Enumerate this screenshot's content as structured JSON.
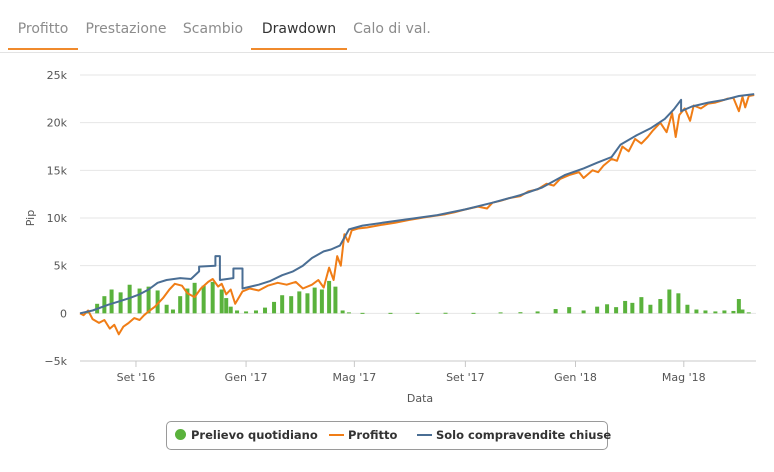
{
  "tabs": [
    {
      "label": "Profitto"
    },
    {
      "label": "Prestazione"
    },
    {
      "label": "Scambio"
    },
    {
      "label": "Drawdown",
      "active": true
    },
    {
      "label": "Calo di val."
    }
  ],
  "colors": {
    "accent": "#f08a2c",
    "daily": "#5ab23c",
    "profit": "#f07d16",
    "closed": "#4a6e94"
  },
  "chart_data": {
    "type": "line",
    "xlabel": "Data",
    "ylabel": "Pip",
    "x_range": [
      "2016-07-01",
      "2018-07-20"
    ],
    "ylim": [
      -5000,
      25000
    ],
    "yticks": [
      {
        "value": 25000,
        "label": "25k"
      },
      {
        "value": 20000,
        "label": "20k"
      },
      {
        "value": 15000,
        "label": "15k"
      },
      {
        "value": 10000,
        "label": "10k"
      },
      {
        "value": 5000,
        "label": "5k"
      },
      {
        "value": 0,
        "label": "0"
      },
      {
        "value": -5000,
        "label": "−5k"
      }
    ],
    "xticks": [
      {
        "date": "2016-09-01",
        "label": "Set '16"
      },
      {
        "date": "2017-01-01",
        "label": "Gen '17"
      },
      {
        "date": "2017-05-01",
        "label": "Mag '17"
      },
      {
        "date": "2017-09-01",
        "label": "Set '17"
      },
      {
        "date": "2018-01-01",
        "label": "Gen '18"
      },
      {
        "date": "2018-05-01",
        "label": "Mag '18"
      }
    ],
    "grid": true,
    "legend_position": "bottom",
    "series": [
      {
        "name": "Prelievo quotidiano",
        "kind": "column",
        "color": "#5ab23c",
        "points": [
          [
            "2016-07-10",
            200
          ],
          [
            "2016-07-20",
            1000
          ],
          [
            "2016-07-28",
            1800
          ],
          [
            "2016-08-05",
            2500
          ],
          [
            "2016-08-15",
            2200
          ],
          [
            "2016-08-25",
            3000
          ],
          [
            "2016-09-05",
            2600
          ],
          [
            "2016-09-15",
            2800
          ],
          [
            "2016-09-25",
            2400
          ],
          [
            "2016-10-05",
            900
          ],
          [
            "2016-10-12",
            400
          ],
          [
            "2016-10-20",
            1800
          ],
          [
            "2016-10-28",
            2600
          ],
          [
            "2016-11-05",
            3200
          ],
          [
            "2016-11-15",
            2900
          ],
          [
            "2016-11-25",
            3300
          ],
          [
            "2016-12-05",
            2500
          ],
          [
            "2016-12-10",
            1600
          ],
          [
            "2016-12-15",
            700
          ],
          [
            "2016-12-22",
            300
          ],
          [
            "2017-01-01",
            200
          ],
          [
            "2017-01-12",
            300
          ],
          [
            "2017-01-22",
            600
          ],
          [
            "2017-02-01",
            1200
          ],
          [
            "2017-02-10",
            1900
          ],
          [
            "2017-02-20",
            1800
          ],
          [
            "2017-03-01",
            2300
          ],
          [
            "2017-03-10",
            2100
          ],
          [
            "2017-03-18",
            2700
          ],
          [
            "2017-03-26",
            2500
          ],
          [
            "2017-04-03",
            3400
          ],
          [
            "2017-04-10",
            2800
          ],
          [
            "2017-04-18",
            300
          ],
          [
            "2017-04-25",
            100
          ],
          [
            "2017-05-10",
            50
          ],
          [
            "2017-06-10",
            50
          ],
          [
            "2017-07-10",
            50
          ],
          [
            "2017-08-10",
            60
          ],
          [
            "2017-09-10",
            50
          ],
          [
            "2017-10-10",
            100
          ],
          [
            "2017-11-01",
            120
          ],
          [
            "2017-11-20",
            200
          ],
          [
            "2017-12-10",
            450
          ],
          [
            "2017-12-25",
            650
          ],
          [
            "2018-01-10",
            300
          ],
          [
            "2018-01-25",
            700
          ],
          [
            "2018-02-05",
            950
          ],
          [
            "2018-02-15",
            650
          ],
          [
            "2018-02-25",
            1300
          ],
          [
            "2018-03-05",
            1100
          ],
          [
            "2018-03-15",
            1700
          ],
          [
            "2018-03-25",
            900
          ],
          [
            "2018-04-05",
            1500
          ],
          [
            "2018-04-15",
            2500
          ],
          [
            "2018-04-25",
            2100
          ],
          [
            "2018-05-05",
            900
          ],
          [
            "2018-05-15",
            400
          ],
          [
            "2018-05-25",
            300
          ],
          [
            "2018-06-05",
            200
          ],
          [
            "2018-06-15",
            300
          ],
          [
            "2018-06-25",
            250
          ],
          [
            "2018-07-01",
            1500
          ],
          [
            "2018-07-05",
            400
          ],
          [
            "2018-07-12",
            100
          ]
        ]
      },
      {
        "name": "Profitto",
        "kind": "line",
        "color": "#f07d16",
        "points": [
          [
            "2016-07-01",
            0
          ],
          [
            "2016-07-05",
            -200
          ],
          [
            "2016-07-10",
            300
          ],
          [
            "2016-07-15",
            -600
          ],
          [
            "2016-07-22",
            -1000
          ],
          [
            "2016-07-28",
            -700
          ],
          [
            "2016-08-03",
            -1600
          ],
          [
            "2016-08-08",
            -1200
          ],
          [
            "2016-08-13",
            -2200
          ],
          [
            "2016-08-18",
            -1400
          ],
          [
            "2016-08-24",
            -1000
          ],
          [
            "2016-08-30",
            -500
          ],
          [
            "2016-09-05",
            -700
          ],
          [
            "2016-09-10",
            -200
          ],
          [
            "2016-09-15",
            200
          ],
          [
            "2016-09-22",
            700
          ],
          [
            "2016-10-01",
            1600
          ],
          [
            "2016-10-08",
            2500
          ],
          [
            "2016-10-14",
            3100
          ],
          [
            "2016-10-22",
            2900
          ],
          [
            "2016-10-28",
            2100
          ],
          [
            "2016-11-05",
            1700
          ],
          [
            "2016-11-12",
            2600
          ],
          [
            "2016-11-20",
            3300
          ],
          [
            "2016-11-25",
            3600
          ],
          [
            "2016-12-01",
            2800
          ],
          [
            "2016-12-05",
            3100
          ],
          [
            "2016-12-10",
            2000
          ],
          [
            "2016-12-15",
            2500
          ],
          [
            "2016-12-20",
            1000
          ],
          [
            "2016-12-28",
            2300
          ],
          [
            "2017-01-05",
            2600
          ],
          [
            "2017-01-15",
            2400
          ],
          [
            "2017-01-25",
            2900
          ],
          [
            "2017-02-05",
            3200
          ],
          [
            "2017-02-15",
            3000
          ],
          [
            "2017-02-25",
            3300
          ],
          [
            "2017-03-05",
            2600
          ],
          [
            "2017-03-15",
            3000
          ],
          [
            "2017-03-22",
            3500
          ],
          [
            "2017-03-28",
            2700
          ],
          [
            "2017-04-03",
            4800
          ],
          [
            "2017-04-08",
            3500
          ],
          [
            "2017-04-12",
            6000
          ],
          [
            "2017-04-16",
            5000
          ],
          [
            "2017-04-20",
            8300
          ],
          [
            "2017-04-24",
            7500
          ],
          [
            "2017-04-28",
            8700
          ],
          [
            "2017-05-05",
            8900
          ],
          [
            "2017-05-15",
            9000
          ],
          [
            "2017-06-01",
            9300
          ],
          [
            "2017-06-15",
            9500
          ],
          [
            "2017-07-01",
            9800
          ],
          [
            "2017-07-20",
            10100
          ],
          [
            "2017-08-10",
            10400
          ],
          [
            "2017-08-20",
            10600
          ],
          [
            "2017-09-01",
            10900
          ],
          [
            "2017-09-15",
            11200
          ],
          [
            "2017-09-25",
            11000
          ],
          [
            "2017-10-01",
            11600
          ],
          [
            "2017-10-10",
            11800
          ],
          [
            "2017-10-20",
            12100
          ],
          [
            "2017-11-01",
            12300
          ],
          [
            "2017-11-10",
            12800
          ],
          [
            "2017-11-20",
            13000
          ],
          [
            "2017-11-30",
            13600
          ],
          [
            "2017-12-08",
            13400
          ],
          [
            "2017-12-15",
            14100
          ],
          [
            "2017-12-25",
            14500
          ],
          [
            "2018-01-05",
            14800
          ],
          [
            "2018-01-10",
            14200
          ],
          [
            "2018-01-20",
            15000
          ],
          [
            "2018-01-26",
            14800
          ],
          [
            "2018-02-01",
            15500
          ],
          [
            "2018-02-10",
            16200
          ],
          [
            "2018-02-16",
            16000
          ],
          [
            "2018-02-22",
            17500
          ],
          [
            "2018-03-01",
            17000
          ],
          [
            "2018-03-08",
            18300
          ],
          [
            "2018-03-15",
            17800
          ],
          [
            "2018-03-22",
            18500
          ],
          [
            "2018-03-28",
            19200
          ],
          [
            "2018-04-05",
            20000
          ],
          [
            "2018-04-12",
            19000
          ],
          [
            "2018-04-18",
            21000
          ],
          [
            "2018-04-22",
            18500
          ],
          [
            "2018-04-26",
            20800
          ],
          [
            "2018-05-02",
            21500
          ],
          [
            "2018-05-08",
            20200
          ],
          [
            "2018-05-12",
            21800
          ],
          [
            "2018-05-20",
            21500
          ],
          [
            "2018-05-28",
            22000
          ],
          [
            "2018-06-05",
            22100
          ],
          [
            "2018-06-12",
            22300
          ],
          [
            "2018-06-18",
            22500
          ],
          [
            "2018-06-25",
            22600
          ],
          [
            "2018-07-01",
            21200
          ],
          [
            "2018-07-05",
            22700
          ],
          [
            "2018-07-08",
            21600
          ],
          [
            "2018-07-12",
            22800
          ],
          [
            "2018-07-18",
            22900
          ]
        ]
      },
      {
        "name": "Solo compravendite chiuse",
        "kind": "line",
        "color": "#4a6e94",
        "points": [
          [
            "2016-07-01",
            0
          ],
          [
            "2016-07-15",
            300
          ],
          [
            "2016-08-01",
            900
          ],
          [
            "2016-08-15",
            1300
          ],
          [
            "2016-08-25",
            1600
          ],
          [
            "2016-09-05",
            2000
          ],
          [
            "2016-09-15",
            2500
          ],
          [
            "2016-09-25",
            3200
          ],
          [
            "2016-10-05",
            3500
          ],
          [
            "2016-10-20",
            3700
          ],
          [
            "2016-11-01",
            3600
          ],
          [
            "2016-11-10",
            4400
          ],
          [
            "2016-11-10",
            4900
          ],
          [
            "2016-11-28",
            5000
          ],
          [
            "2016-11-28",
            6000
          ],
          [
            "2016-12-03",
            6000
          ],
          [
            "2016-12-03",
            3500
          ],
          [
            "2016-12-18",
            3700
          ],
          [
            "2016-12-18",
            4700
          ],
          [
            "2016-12-28",
            4700
          ],
          [
            "2016-12-28",
            2600
          ],
          [
            "2017-01-15",
            3000
          ],
          [
            "2017-01-28",
            3400
          ],
          [
            "2017-02-10",
            4000
          ],
          [
            "2017-02-22",
            4400
          ],
          [
            "2017-03-05",
            5000
          ],
          [
            "2017-03-15",
            5800
          ],
          [
            "2017-03-28",
            6500
          ],
          [
            "2017-04-05",
            6700
          ],
          [
            "2017-04-15",
            7100
          ],
          [
            "2017-04-25",
            8800
          ],
          [
            "2017-05-10",
            9200
          ],
          [
            "2017-06-01",
            9500
          ],
          [
            "2017-07-01",
            9900
          ],
          [
            "2017-08-01",
            10300
          ],
          [
            "2017-09-01",
            10900
          ],
          [
            "2017-10-01",
            11600
          ],
          [
            "2017-11-01",
            12400
          ],
          [
            "2017-11-25",
            13200
          ],
          [
            "2017-12-20",
            14500
          ],
          [
            "2018-01-10",
            15200
          ],
          [
            "2018-01-25",
            15800
          ],
          [
            "2018-02-10",
            16400
          ],
          [
            "2018-02-20",
            17700
          ],
          [
            "2018-03-10",
            18700
          ],
          [
            "2018-03-25",
            19400
          ],
          [
            "2018-04-10",
            20400
          ],
          [
            "2018-04-20",
            21400
          ],
          [
            "2018-04-28",
            22400
          ],
          [
            "2018-04-28",
            21200
          ],
          [
            "2018-05-10",
            21700
          ],
          [
            "2018-05-28",
            22100
          ],
          [
            "2018-06-15",
            22400
          ],
          [
            "2018-07-01",
            22800
          ],
          [
            "2018-07-18",
            23000
          ]
        ]
      }
    ]
  }
}
